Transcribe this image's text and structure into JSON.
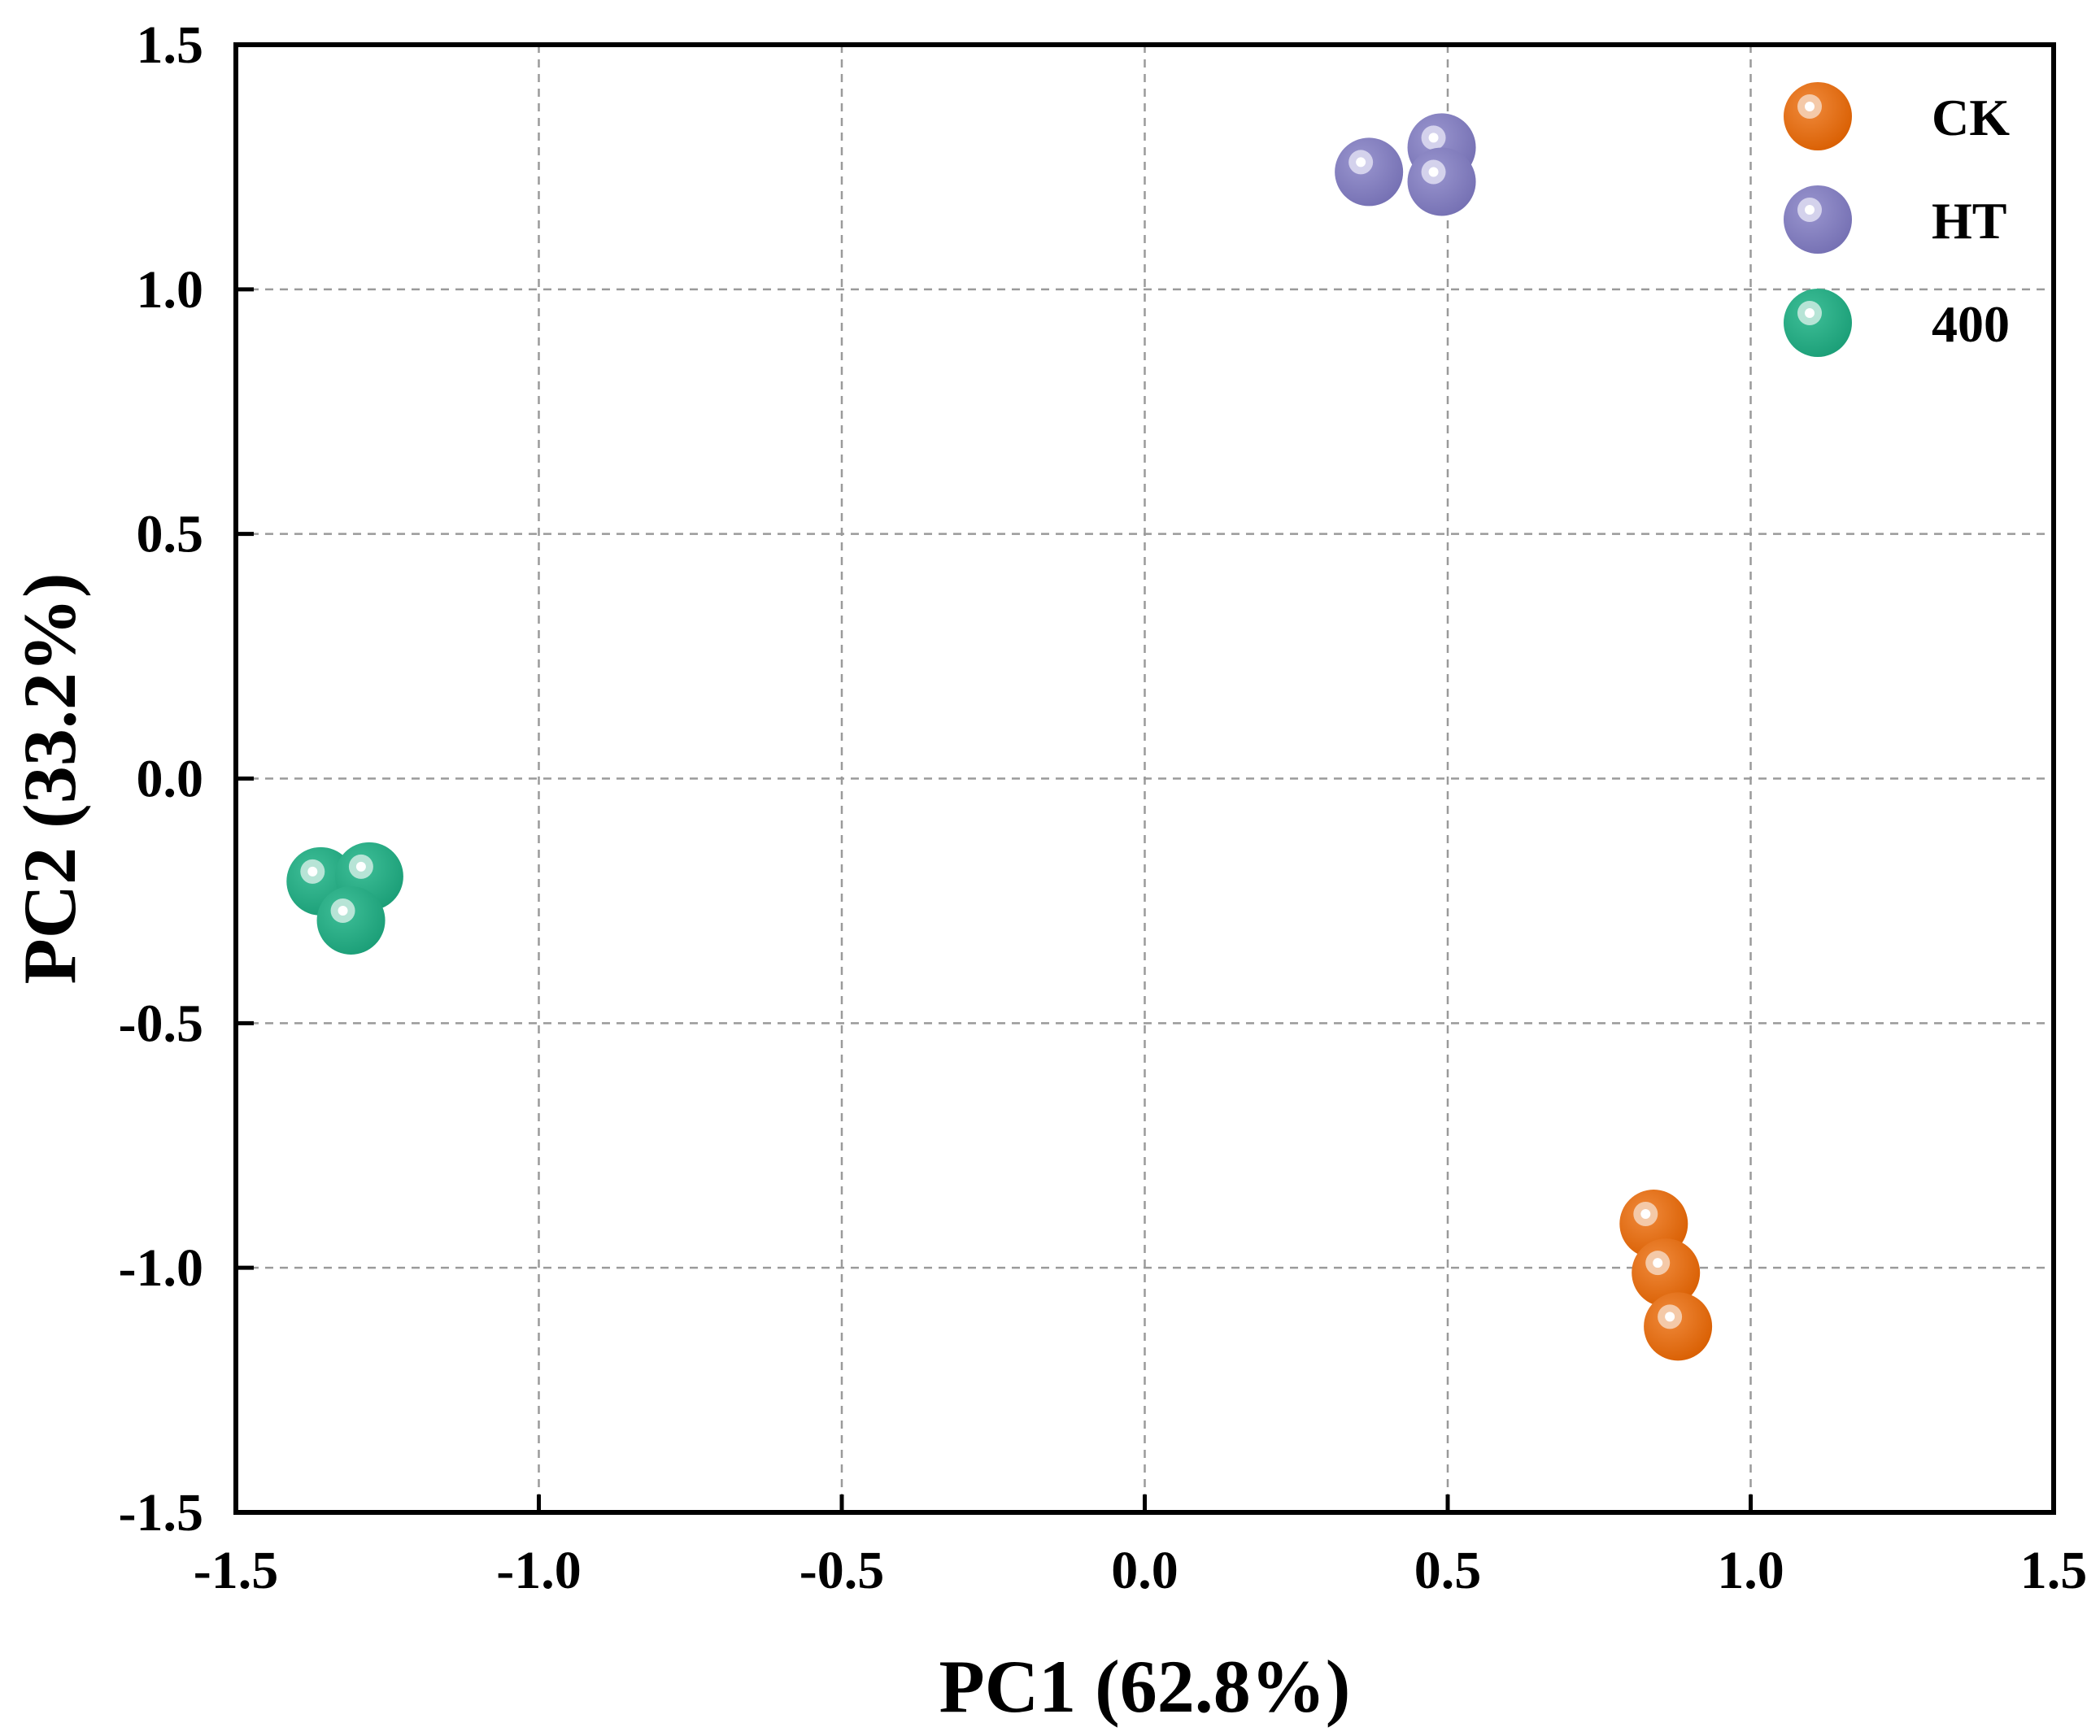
{
  "chart_data": {
    "type": "scatter",
    "xlabel": "PC1 (62.8%)",
    "ylabel": "PC2 (33.2%)",
    "xlim": [
      -1.5,
      1.5
    ],
    "ylim": [
      -1.5,
      1.5
    ],
    "xticks": [
      -1.5,
      -1.0,
      -0.5,
      0.0,
      0.5,
      1.0,
      1.5
    ],
    "yticks": [
      -1.5,
      -1.0,
      -0.5,
      0.0,
      0.5,
      1.0,
      1.5
    ],
    "xtick_labels": [
      "-1.5",
      "-1.0",
      "-0.5",
      "0.0",
      "0.5",
      "1.0",
      "1.5"
    ],
    "ytick_labels": [
      "-1.5",
      "-1.0",
      "-0.5",
      "0.0",
      "0.5",
      "1.0",
      "1.5"
    ],
    "grid": true,
    "legend_position": "top-right",
    "series": [
      {
        "name": "CK",
        "color": "#d95f02",
        "highlight": "#f4c9a8",
        "points": [
          [
            0.84,
            -0.91
          ],
          [
            0.86,
            -1.01
          ],
          [
            0.88,
            -1.12
          ]
        ]
      },
      {
        "name": "HT",
        "color": "#7570b3",
        "highlight": "#d4d2ec",
        "points": [
          [
            0.37,
            1.24
          ],
          [
            0.49,
            1.29
          ],
          [
            0.49,
            1.22
          ]
        ]
      },
      {
        "name": "400",
        "color": "#1b9e77",
        "highlight": "#b7e4d6",
        "points": [
          [
            -1.36,
            -0.21
          ],
          [
            -1.28,
            -0.2
          ],
          [
            -1.31,
            -0.29
          ]
        ]
      }
    ]
  }
}
